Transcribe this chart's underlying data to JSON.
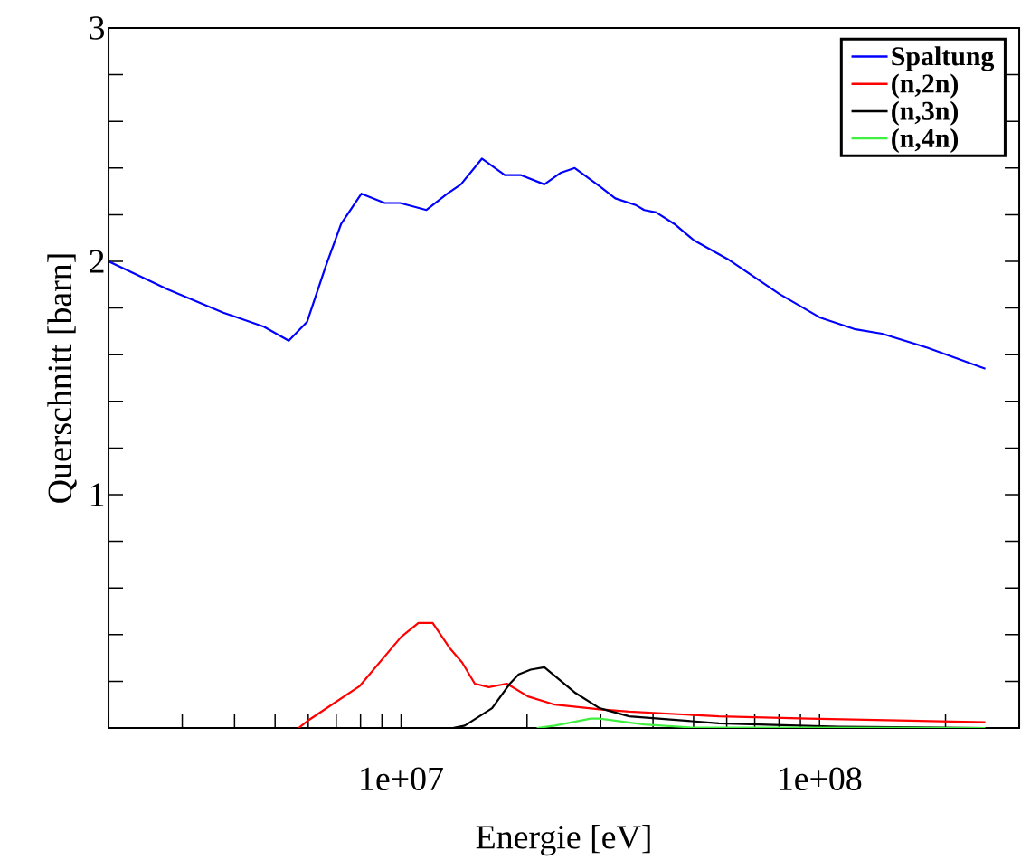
{
  "chart_data": {
    "type": "line",
    "xlabel": "Energie [eV]",
    "ylabel": "Querschnitt [barn]",
    "log": "x",
    "legend": "top right",
    "marker": "none",
    "line_style": "solid",
    "grid": false,
    "xlim": [
      2000000,
      300000000
    ],
    "ylim": [
      0,
      3
    ],
    "xticks": [
      {
        "value": 2000000,
        "label": null
      },
      {
        "value": 3000000,
        "label": null
      },
      {
        "value": 4000000,
        "label": null
      },
      {
        "value": 5000000,
        "label": null
      },
      {
        "value": 6000000,
        "label": null
      },
      {
        "value": 7000000,
        "label": null
      },
      {
        "value": 8000000,
        "label": null
      },
      {
        "value": 9000000,
        "label": null
      },
      {
        "value": 10000000,
        "label": "1e+07"
      },
      {
        "value": 20000000,
        "label": null
      },
      {
        "value": 30000000,
        "label": null
      },
      {
        "value": 40000000,
        "label": null
      },
      {
        "value": 50000000,
        "label": null
      },
      {
        "value": 60000000,
        "label": null
      },
      {
        "value": 70000000,
        "label": null
      },
      {
        "value": 80000000,
        "label": null
      },
      {
        "value": 90000000,
        "label": null
      },
      {
        "value": 100000000,
        "label": "1e+08"
      },
      {
        "value": 200000000,
        "label": null
      }
    ],
    "yticks": [
      {
        "value": 0,
        "label": null
      },
      {
        "value": 0.2,
        "label": null
      },
      {
        "value": 0.4,
        "label": null
      },
      {
        "value": 0.6,
        "label": null
      },
      {
        "value": 0.8,
        "label": null
      },
      1,
      {
        "value": 1.2,
        "label": null
      },
      {
        "value": 1.4,
        "label": null
      },
      {
        "value": 1.6,
        "label": null
      },
      {
        "value": 1.8,
        "label": null
      },
      2,
      {
        "value": 2.2,
        "label": null
      },
      {
        "value": 2.4,
        "label": null
      },
      {
        "value": 2.6,
        "label": null
      },
      {
        "value": 2.8,
        "label": null
      },
      3
    ],
    "series": [
      {
        "name": "Spaltung",
        "color": "#0000ff",
        "x": [
          2000000,
          2770000,
          3760000,
          4700000,
          5390000,
          5960000,
          6610000,
          7190000,
          8040000,
          9140000,
          9950000,
          11500000,
          12900000,
          13900000,
          15600000,
          17700000,
          19300000,
          22000000,
          24100000,
          26000000,
          29900000,
          32500000,
          36500000,
          38100000,
          40700000,
          45000000,
          50100000,
          60300000,
          80200000,
          100000000,
          121000000,
          141000000,
          181000000,
          249000000
        ],
        "values": [
          2.0,
          1.88,
          1.78,
          1.72,
          1.66,
          1.74,
          1.98,
          2.16,
          2.29,
          2.25,
          2.25,
          2.22,
          2.29,
          2.33,
          2.44,
          2.37,
          2.37,
          2.33,
          2.38,
          2.4,
          2.32,
          2.27,
          2.24,
          2.22,
          2.21,
          2.16,
          2.09,
          2.01,
          1.86,
          1.76,
          1.71,
          1.69,
          1.63,
          1.54
        ]
      },
      {
        "name": "(n,2n)",
        "color": "#ff0000",
        "x": [
          5690000,
          6030000,
          7970000,
          10000000,
          11000000,
          11900000,
          13100000,
          14000000,
          15000000,
          16200000,
          17900000,
          20100000,
          23300000,
          29800000,
          35100000,
          57500000,
          94300000,
          249000000
        ],
        "values": [
          0,
          0.035,
          0.18,
          0.39,
          0.45,
          0.45,
          0.34,
          0.28,
          0.19,
          0.175,
          0.19,
          0.135,
          0.1,
          0.08,
          0.07,
          0.05,
          0.04,
          0.025
        ]
      },
      {
        "name": "(n,3n)",
        "color": "#000000",
        "x": [
          13300000,
          14200000,
          16500000,
          18200000,
          19100000,
          20400000,
          22000000,
          26100000,
          29800000,
          35100000,
          57500000,
          111000000,
          249000000
        ],
        "values": [
          0,
          0.01,
          0.085,
          0.19,
          0.23,
          0.25,
          0.26,
          0.15,
          0.085,
          0.05,
          0.02,
          0.005,
          0
        ]
      },
      {
        "name": "(n,4n)",
        "color": "#40f040",
        "x": [
          21100000,
          23300000,
          28400000,
          29800000,
          38100000,
          48800000,
          249000000
        ],
        "values": [
          0,
          0.01,
          0.04,
          0.04,
          0.015,
          0.003,
          0
        ]
      }
    ]
  }
}
